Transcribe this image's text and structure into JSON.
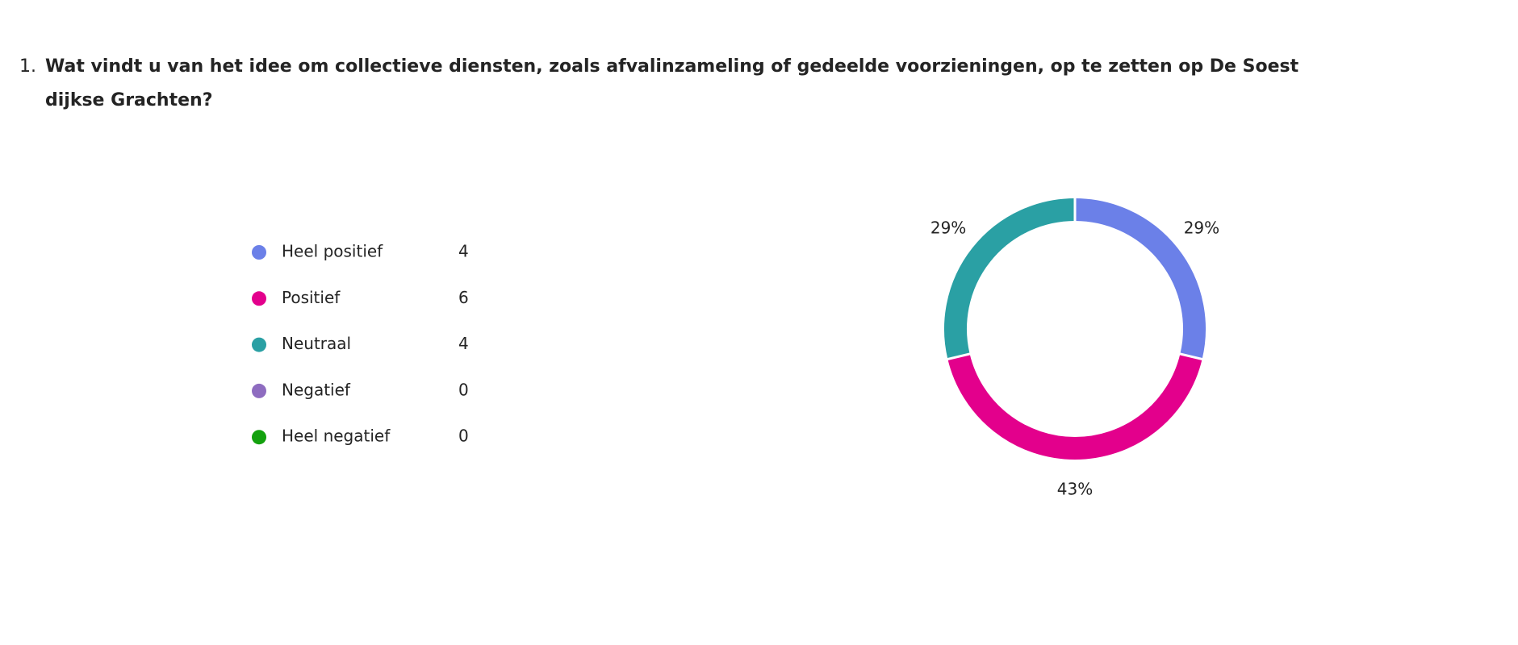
{
  "question_number": "1.",
  "chart_data": {
    "type": "donut",
    "title": "Wat vindt u van het idee om collectieve diensten, zoals afvalinzameling of gedeelde voorzieningen, op te zetten op De Soestdijkse Grachten?",
    "categories": [
      "Heel positief",
      "Positief",
      "Neutraal",
      "Negatief",
      "Heel negatief"
    ],
    "values": [
      4,
      6,
      4,
      0,
      0
    ],
    "shares": [
      29,
      43,
      29,
      null,
      null
    ],
    "share_labels": [
      "29%",
      "43%",
      "29%",
      null,
      null
    ],
    "colors": [
      "#6b80e8",
      "#e3008c",
      "#2aa0a4",
      "#8e6cc0",
      "#13a10e"
    ]
  }
}
